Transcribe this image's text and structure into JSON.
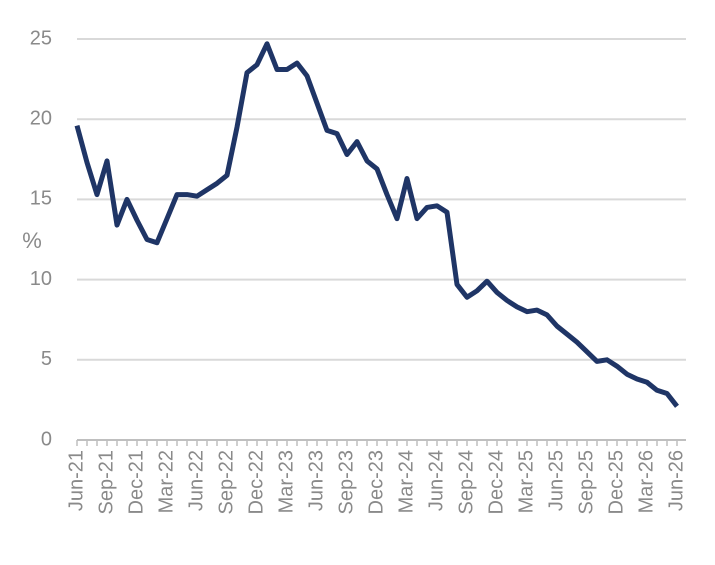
{
  "chart_data": {
    "type": "line",
    "y_label": "%",
    "categories": [
      "Jun-21",
      null,
      null,
      "Sep-21",
      null,
      null,
      "Dec-21",
      null,
      null,
      "Mar-22",
      null,
      null,
      "Jun-22",
      null,
      null,
      "Sep-22",
      null,
      null,
      "Dec-22",
      null,
      null,
      "Mar-23",
      null,
      null,
      "Jun-23",
      null,
      null,
      "Sep-23",
      null,
      null,
      "Dec-23",
      null,
      null,
      "Mar-24",
      null,
      null,
      "Jun-24",
      null,
      null,
      "Sep-24",
      null,
      null,
      "Dec-24",
      null,
      null,
      "Mar-25",
      null,
      null,
      "Jun-25",
      null,
      null,
      "Sep-25",
      null,
      null,
      "Dec-25",
      null,
      null,
      "Mar-26",
      null,
      null,
      "Jun-26"
    ],
    "series": [
      {
        "color": "#1f3566",
        "values": [
          19.6,
          17.3,
          15.3,
          17.4,
          13.4,
          15.0,
          13.7,
          12.5,
          12.3,
          13.8,
          15.3,
          15.3,
          15.2,
          15.6,
          16.0,
          16.5,
          19.5,
          22.9,
          23.4,
          24.7,
          23.1,
          23.1,
          23.5,
          22.7,
          21.0,
          19.3,
          19.1,
          17.8,
          18.6,
          17.4,
          16.9,
          15.3,
          13.8,
          16.3,
          13.8,
          14.5,
          14.6,
          14.2,
          9.7,
          8.9,
          9.3,
          9.9,
          9.2,
          8.7,
          8.3,
          8.0,
          8.1,
          7.8,
          7.1,
          6.6,
          6.1,
          5.5,
          4.9,
          5.0,
          4.6,
          4.1,
          3.8,
          3.6,
          3.1,
          2.9,
          2.1
        ]
      }
    ],
    "ylim": [
      0,
      25
    ],
    "yticks": [
      0,
      5,
      10,
      15,
      20,
      25
    ],
    "grid": true
  }
}
